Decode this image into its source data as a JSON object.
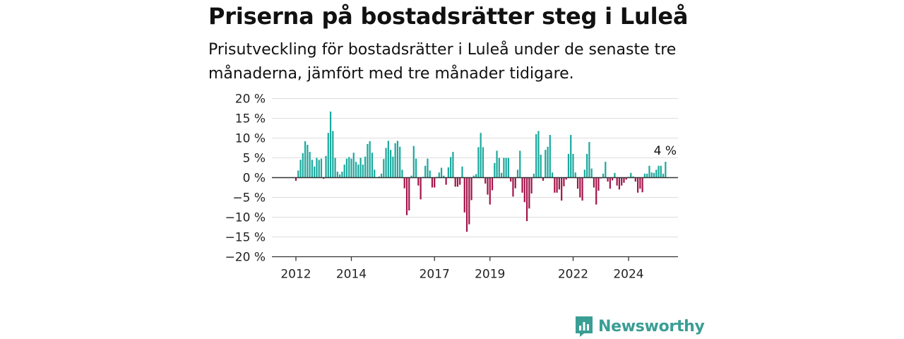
{
  "header": {
    "title": "Priserna på bostadsrätter steg i Luleå",
    "subtitle": "Prisutveckling för bostadsrätter i Luleå under de senaste tre månaderna, jämfört med tre månader tidigare."
  },
  "brand": {
    "name": "Newsworthy",
    "icon": "newsworthy-logo-icon"
  },
  "colors": {
    "positive": "#1aa99e",
    "negative": "#a3144a",
    "grid": "#dddddd",
    "zero_line": "#333333",
    "brand": "#3a9e95"
  },
  "chart_data": {
    "type": "bar",
    "title": "Priserna på bostadsrätter steg i Luleå",
    "xlabel": "",
    "ylabel": "",
    "unit": "%",
    "ylim": [
      -20,
      20
    ],
    "yticks": [
      20,
      15,
      10,
      5,
      0,
      -5,
      -10,
      -15,
      -20
    ],
    "ytick_labels": [
      "20 %",
      "15 %",
      "10 %",
      "5 %",
      "0 %",
      "−5 %",
      "−10 %",
      "−15 %",
      "−20 %"
    ],
    "xticks": [
      2012,
      2014,
      2017,
      2019,
      2022,
      2024
    ],
    "grid": true,
    "start": "2012-01",
    "frequency": "monthly",
    "annotation": {
      "text": "4 %",
      "target": "last"
    },
    "values": [
      -0.8,
      1.8,
      4.5,
      6.2,
      9.2,
      8.3,
      6.5,
      4.5,
      2.8,
      5.0,
      4.5,
      4.8,
      -0.3,
      5.5,
      11.3,
      16.7,
      11.8,
      5.0,
      1.5,
      0.8,
      1.5,
      3.3,
      4.8,
      5.2,
      4.8,
      6.3,
      4.0,
      3.3,
      5.0,
      3.3,
      5.3,
      8.5,
      9.2,
      6.3,
      2.0,
      0.1,
      0.3,
      1.0,
      4.7,
      7.5,
      9.3,
      7.0,
      5.3,
      8.7,
      9.3,
      7.8,
      2.0,
      -2.7,
      -9.5,
      -8.3,
      0.5,
      8.0,
      4.8,
      -2.0,
      -5.5,
      0.2,
      3.0,
      4.8,
      1.8,
      -2.5,
      -2.5,
      0.2,
      1.3,
      2.5,
      0.5,
      -1.8,
      2.6,
      5.2,
      6.5,
      -2.3,
      -2.3,
      -1.8,
      2.8,
      -8.8,
      -13.7,
      -11.8,
      -5.7,
      0.5,
      0.9,
      7.7,
      11.3,
      7.7,
      -1.5,
      -4.3,
      -6.8,
      -3.2,
      3.7,
      6.8,
      5.0,
      1.2,
      5.0,
      5.0,
      5.0,
      -1.0,
      -4.8,
      -2.7,
      2.0,
      6.8,
      -3.8,
      -6.2,
      -11.0,
      -7.8,
      -4.0,
      1.0,
      11.0,
      11.8,
      5.8,
      -0.8,
      7.0,
      7.8,
      10.8,
      1.3,
      -3.8,
      -3.8,
      -3.0,
      -5.8,
      -2.2,
      -0.5,
      6.0,
      10.8,
      6.0,
      1.3,
      -2.8,
      -5.0,
      -5.8,
      2.0,
      6.0,
      9.0,
      2.3,
      -2.5,
      -6.8,
      -3.3,
      -0.2,
      1.0,
      4.0,
      -1.0,
      -2.8,
      -0.7,
      1.2,
      -2.0,
      -3.0,
      -2.0,
      -1.3,
      -0.5,
      0.2,
      1.2,
      0.3,
      -1.0,
      -3.8,
      -2.8,
      -3.7,
      1.0,
      1.0,
      3.0,
      1.3,
      1.2,
      2.0,
      3.0,
      3.0,
      1.0,
      4.0
    ]
  }
}
